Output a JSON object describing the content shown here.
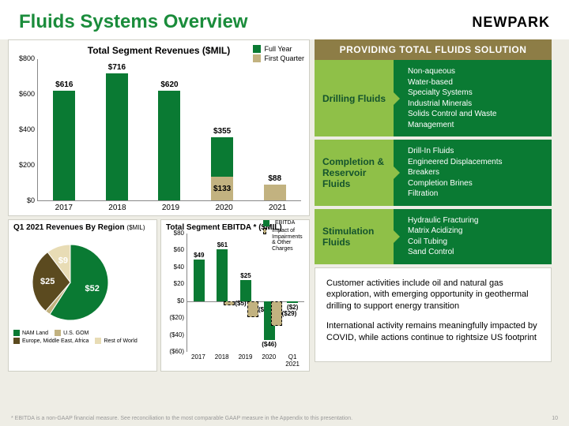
{
  "header": {
    "title": "Fluids Systems Overview",
    "logo": "NEWPARK"
  },
  "bar_chart": {
    "title": "Total Segment Revenues ($MIL)",
    "ymax": 800,
    "ytick_step": 200,
    "yticks": [
      "$0",
      "$200",
      "$400",
      "$600",
      "$800"
    ],
    "legend": [
      {
        "label": "Full Year",
        "color": "#0a7a33"
      },
      {
        "label": "First Quarter",
        "color": "#c2b280"
      }
    ],
    "bars": [
      {
        "x": "2017",
        "full": 616,
        "fq": 0,
        "label": "$616"
      },
      {
        "x": "2018",
        "full": 716,
        "fq": 0,
        "label": "$716"
      },
      {
        "x": "2019",
        "full": 620,
        "fq": 0,
        "label": "$620"
      },
      {
        "x": "2020",
        "full": 355,
        "fq": 133,
        "label": "$355",
        "fq_label": "$133"
      },
      {
        "x": "2021",
        "full": 0,
        "fq": 88,
        "label": "$88"
      }
    ]
  },
  "pie": {
    "title": "Q1 2021 Revenues By Region",
    "unit": "($MIL)",
    "slices": [
      {
        "label": "NAM Land",
        "value": 52,
        "color": "#0a7a33",
        "vlabel": "$52"
      },
      {
        "label": "U.S. GOM",
        "value": 2,
        "color": "#c2b280",
        "vlabel": ""
      },
      {
        "label": "Europe, Middle East, Africa",
        "value": 25,
        "color": "#5b4a1f",
        "vlabel": "$25"
      },
      {
        "label": "Rest of World",
        "value": 9,
        "color": "#e8dcb5",
        "vlabel": "$9"
      }
    ]
  },
  "ebitda": {
    "title": "Total Segment EBITDA * ($MIL)",
    "ymin": -60,
    "ymax": 80,
    "ytick_step": 20,
    "yticks": [
      "($60)",
      "($40)",
      "($20)",
      "$0",
      "$20",
      "$40",
      "$60",
      "$80"
    ],
    "legend": [
      {
        "label": "EBITDA",
        "color": "#0a7a33"
      },
      {
        "label": "Impact of Impairments & Other Charges",
        "color": "#c2b280",
        "dashed": true
      }
    ],
    "bars": [
      {
        "x": "2017",
        "v": 49,
        "lbl": "$49",
        "imp": 0,
        "ilbl": ""
      },
      {
        "x": "2018",
        "v": 61,
        "lbl": "$61",
        "imp": -5,
        "ilbl": "($5)"
      },
      {
        "x": "2019",
        "v": 25,
        "lbl": "$25",
        "imp": -19,
        "ilbl": "($19)"
      },
      {
        "x": "2020",
        "v": -46,
        "lbl": "($46)",
        "imp": -29,
        "ilbl": "($29)"
      },
      {
        "x": "Q1 2021",
        "v": -2,
        "lbl": "($2)",
        "imp": 0,
        "ilbl": ""
      }
    ]
  },
  "right": {
    "header": "PROVIDING TOTAL FLUIDS SOLUTION",
    "cards": [
      {
        "title": "Drilling Fluids",
        "items": [
          "Non-aqueous",
          "Water-based",
          "Specialty Systems",
          "Industrial Minerals",
          "Solids Control and Waste Management"
        ]
      },
      {
        "title": "Completion & Reservoir Fluids",
        "items": [
          "Drill-In Fluids",
          "Engineered Displacements",
          "Breakers",
          "Completion Brines",
          "Filtration"
        ]
      },
      {
        "title": "Stimulation Fluids",
        "items": [
          "Hydraulic Fracturing",
          "Matrix Acidizing",
          "Coil Tubing",
          "Sand Control"
        ]
      }
    ],
    "body": [
      "Customer activities include oil and natural gas exploration, with emerging opportunity in geothermal drilling to support energy transition",
      "International activity remains meaningfully impacted by COVID, while actions continue to rightsize US footprint"
    ]
  },
  "footer": {
    "note": "*   EBITDA is a non-GAAP financial measure. See reconciliation to the most comparable GAAP measure in the Appendix to this presentation.",
    "page": "10"
  }
}
